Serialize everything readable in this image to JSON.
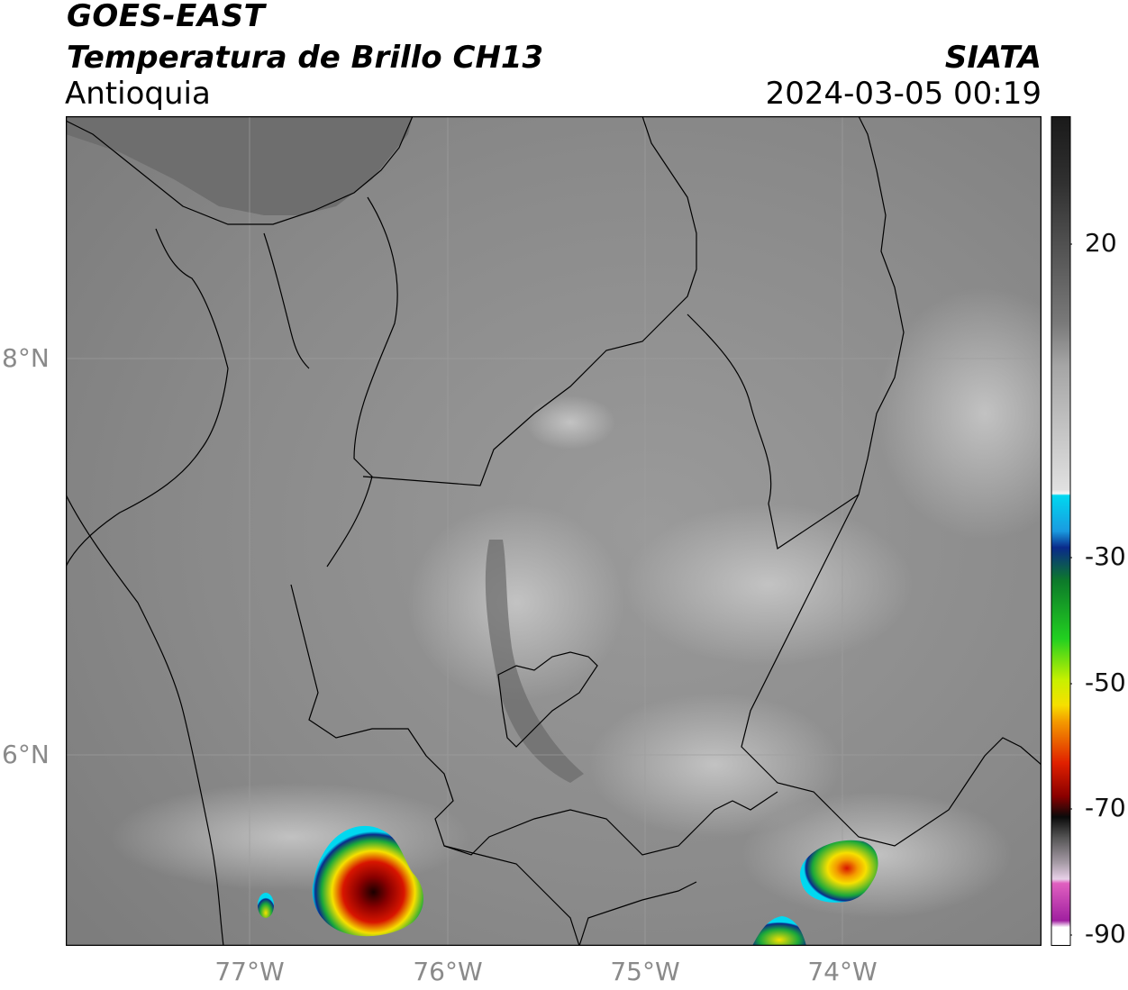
{
  "header": {
    "satellite": "GOES-EAST",
    "product": "Temperatura de Brillo CH13",
    "region": "Antioquia",
    "agency": "SIATA",
    "datetime": "2024-03-05 00:19"
  },
  "map": {
    "lat_labels": [
      "8°N",
      "6°N"
    ],
    "lon_labels": [
      "77°W",
      "76°W",
      "75°W",
      "74°W"
    ],
    "background": "#8c8c8c"
  },
  "colorbar": {
    "ticks": [
      "20",
      "-30",
      "-50",
      "-70",
      "-90"
    ],
    "colors": {
      "warm_dark": "#1a1a1a",
      "mid_gray": "#777777",
      "light_gray": "#f2f2f2",
      "cyan": "#00d8f0",
      "blue": "#0a2a8a",
      "green": "#1aa83a",
      "yellow": "#f6e000",
      "orange": "#f49a00",
      "red": "#d81500",
      "dark_red": "#5a0000",
      "magenta": "#c030c0"
    }
  }
}
